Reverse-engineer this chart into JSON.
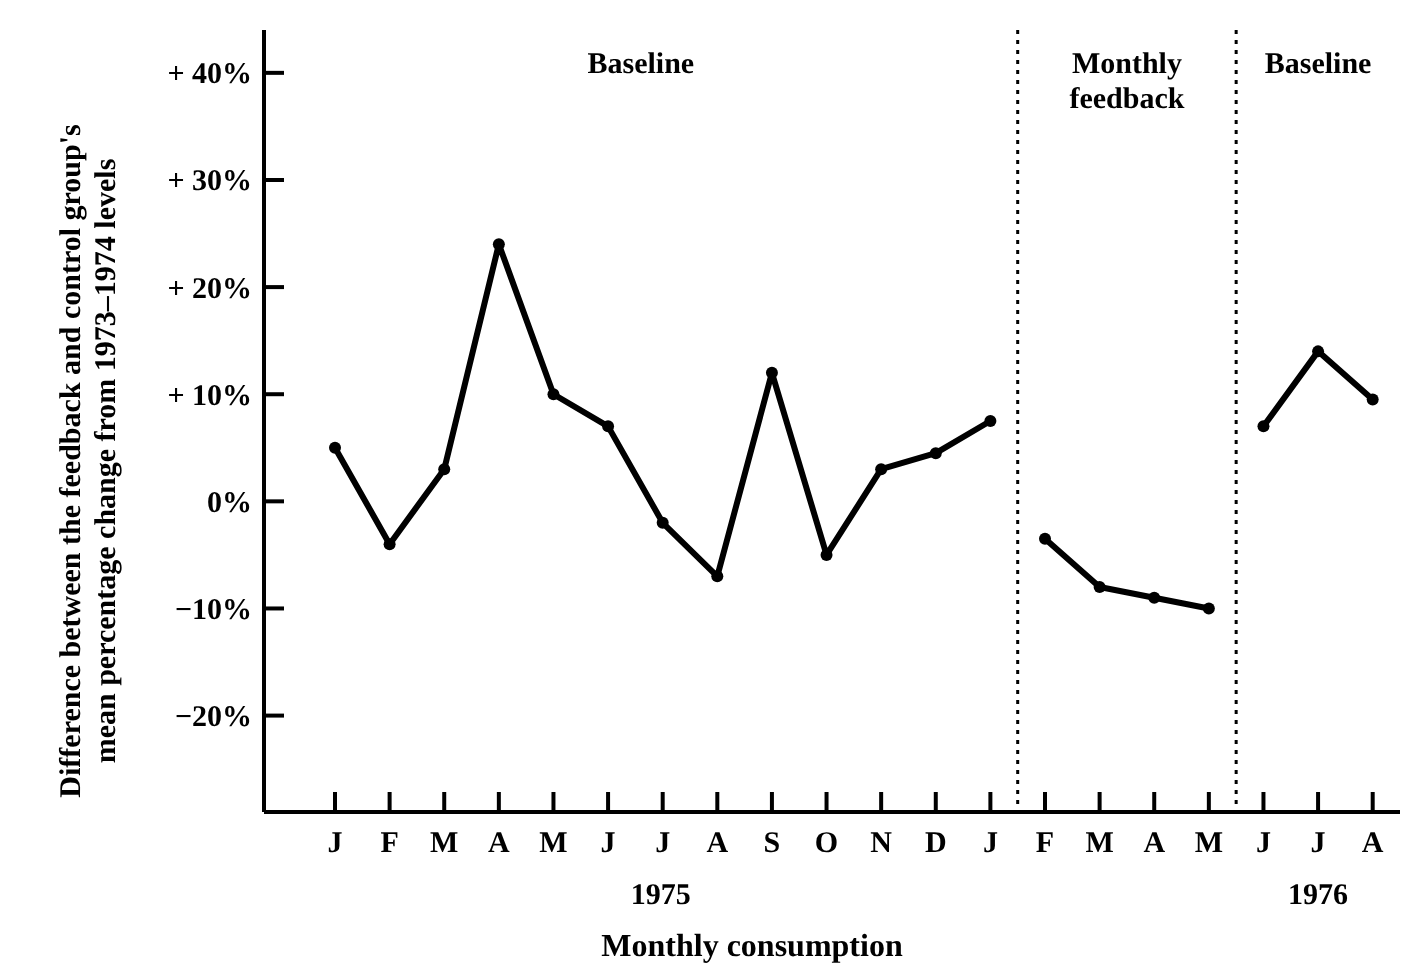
{
  "chart_data": {
    "type": "line",
    "xlabel": "Monthly consumption",
    "ylabel": "Difference between the feedback and control group's mean percentage change from 1973–1974 levels",
    "categories": [
      "J",
      "F",
      "M",
      "A",
      "M",
      "J",
      "J",
      "A",
      "S",
      "O",
      "N",
      "D",
      "J",
      "F",
      "M",
      "A",
      "M",
      "J",
      "J",
      "A"
    ],
    "ylim": [
      -29,
      44
    ],
    "yticks": [
      {
        "value": 40,
        "label": "+ 40%"
      },
      {
        "value": 30,
        "label": "+ 30%"
      },
      {
        "value": 20,
        "label": "+ 20%"
      },
      {
        "value": 10,
        "label": "+ 10%"
      },
      {
        "value": 0,
        "label": "0%"
      },
      {
        "value": -10,
        "label": "−10%"
      },
      {
        "value": -20,
        "label": "−20%"
      }
    ],
    "series": [
      {
        "color": "#000000",
        "values": [
          5,
          -4,
          3,
          24,
          10,
          7,
          -2,
          -7,
          12,
          -5,
          3,
          4.5,
          7.5,
          null,
          null,
          null,
          null,
          null,
          null,
          null
        ]
      },
      {
        "color": "#000000",
        "values": [
          null,
          null,
          null,
          null,
          null,
          null,
          null,
          null,
          null,
          null,
          null,
          null,
          null,
          -3.5,
          -8,
          -9,
          -10,
          null,
          null,
          null
        ]
      },
      {
        "color": "#000000",
        "values": [
          null,
          null,
          null,
          null,
          null,
          null,
          null,
          null,
          null,
          null,
          null,
          null,
          null,
          null,
          null,
          null,
          null,
          7,
          14,
          9.5
        ]
      }
    ],
    "annotations": [
      "Baseline",
      "Monthly feedback",
      "Baseline",
      "1975",
      "1976"
    ],
    "marker": "circle",
    "line_style": "solid"
  }
}
